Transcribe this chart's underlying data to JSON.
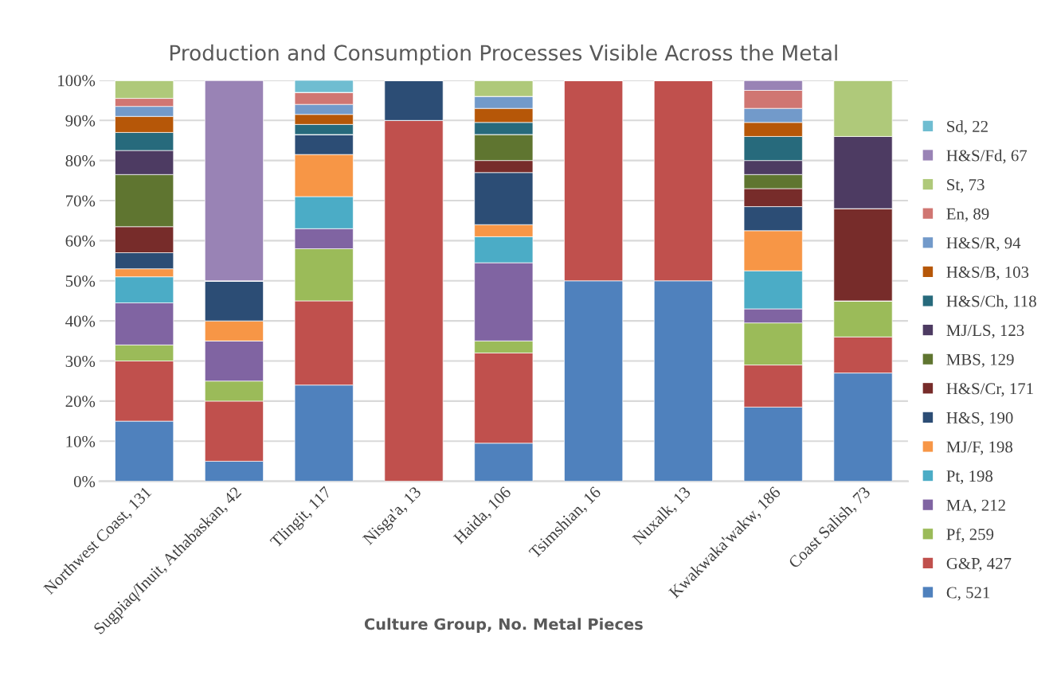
{
  "chart_data": {
    "type": "bar",
    "stacked": true,
    "title": "Production and Consumption Processes Visible Across the Metal",
    "xlabel": "Culture Group, No. Metal Pieces",
    "categories": [
      "Northwest Coast, 131",
      "Sugpiaq/Inuit, Athabaskan, 42",
      "Tlingit, 117",
      "Nisga'a, 13",
      "Haida, 106",
      "Tsimshian, 16",
      "Nuxalk, 13",
      "Kwakwaka'wakw, 186",
      "Coast Salish, 73"
    ],
    "ylim": [
      0,
      100
    ],
    "yticks": [
      {
        "value": 0,
        "label": "0%"
      },
      {
        "value": 10,
        "label": "10%"
      },
      {
        "value": 20,
        "label": "20%"
      },
      {
        "value": 30,
        "label": "30%"
      },
      {
        "value": 40,
        "label": "40%"
      },
      {
        "value": 50,
        "label": "50%"
      },
      {
        "value": 60,
        "label": "60%"
      },
      {
        "value": 70,
        "label": "70%"
      },
      {
        "value": 80,
        "label": "80%"
      },
      {
        "value": 90,
        "label": "90%"
      },
      {
        "value": 100,
        "label": "100%"
      }
    ],
    "grid": "y",
    "legend": "right",
    "series": [
      {
        "name": "C, 521",
        "color": "#4f81bd",
        "values": [
          15,
          5,
          24,
          null,
          9.5,
          50,
          50,
          18.5,
          27
        ]
      },
      {
        "name": "G&P, 427",
        "color": "#c0504d",
        "values": [
          15,
          15,
          21,
          90,
          22.5,
          50,
          50,
          10.5,
          9
        ]
      },
      {
        "name": "Pf, 259",
        "color": "#9bbb59",
        "values": [
          4,
          5,
          13,
          null,
          3,
          null,
          null,
          10.5,
          9
        ]
      },
      {
        "name": "MA, 212",
        "color": "#8064a2",
        "values": [
          10.5,
          10,
          5,
          null,
          19.5,
          null,
          null,
          3.5,
          null
        ]
      },
      {
        "name": "Pt, 198",
        "color": "#4bacc6",
        "values": [
          6.5,
          null,
          8,
          null,
          6.5,
          null,
          null,
          9.5,
          null
        ]
      },
      {
        "name": "MJ/F, 198",
        "color": "#f79646",
        "values": [
          2,
          5,
          10.5,
          null,
          3,
          null,
          null,
          10,
          null
        ]
      },
      {
        "name": "H&S, 190",
        "color": "#2c4d75",
        "values": [
          4,
          10,
          5,
          10,
          13,
          null,
          null,
          6,
          null
        ]
      },
      {
        "name": "H&S/Cr, 171",
        "color": "#772c2a",
        "values": [
          6.5,
          null,
          null,
          null,
          3,
          null,
          null,
          4.5,
          23
        ]
      },
      {
        "name": "MBS, 129",
        "color": "#5f7530",
        "values": [
          13,
          null,
          null,
          null,
          6.5,
          null,
          null,
          3.5,
          null
        ]
      },
      {
        "name": "MJ/LS, 123",
        "color": "#4d3b62",
        "values": [
          6,
          null,
          null,
          null,
          null,
          null,
          null,
          3.5,
          18
        ]
      },
      {
        "name": "H&S/Ch, 118",
        "color": "#276a7c",
        "values": [
          4.5,
          null,
          2.5,
          null,
          3,
          null,
          null,
          6,
          null
        ]
      },
      {
        "name": "H&S/B, 103",
        "color": "#b65708",
        "values": [
          4,
          null,
          2.5,
          null,
          3.5,
          null,
          null,
          3.5,
          null
        ]
      },
      {
        "name": "H&S/R, 94",
        "color": "#729aca",
        "values": [
          2.5,
          null,
          2.5,
          null,
          3,
          null,
          null,
          3.5,
          null
        ]
      },
      {
        "name": "En, 89",
        "color": "#d07672",
        "values": [
          2,
          null,
          3,
          null,
          null,
          null,
          null,
          4.5,
          null
        ]
      },
      {
        "name": "St, 73",
        "color": "#afc97a",
        "values": [
          4.5,
          null,
          null,
          null,
          4,
          null,
          null,
          null,
          14
        ]
      },
      {
        "name": "H&S/Fd, 67",
        "color": "#9983b5",
        "values": [
          null,
          50,
          null,
          null,
          null,
          null,
          null,
          2.5,
          null
        ]
      },
      {
        "name": "Sd, 22",
        "color": "#6fbdd1",
        "values": [
          null,
          null,
          3,
          null,
          null,
          null,
          null,
          null,
          null
        ]
      }
    ]
  }
}
